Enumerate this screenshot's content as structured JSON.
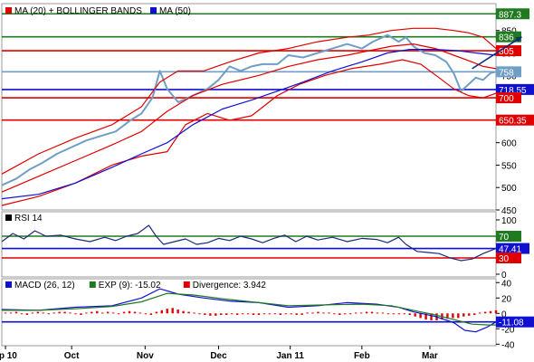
{
  "chart_data": [
    {
      "type": "line",
      "panel": "price",
      "legend": [
        {
          "label": "MA (20) + BOLLINGER BANDS",
          "color": "#e00000"
        },
        {
          "label": "MA (50)",
          "color": "#1010d0"
        }
      ],
      "ylim": [
        450,
        910
      ],
      "y_ticks": [
        450,
        500,
        550,
        600,
        650,
        700,
        750,
        800,
        850
      ],
      "x_labels": [
        "ep 10",
        "Oct",
        "Nov",
        "Dec",
        "Jan 11",
        "Feb",
        "Mar"
      ],
      "x_label_idx": [
        2,
        38,
        78,
        118,
        157,
        196,
        233
      ],
      "n_points": 270,
      "levels": [
        {
          "value": 887.3,
          "label": "887.3",
          "color": "#207a20"
        },
        {
          "value": 836,
          "label": "836",
          "color": "#207a20"
        },
        {
          "value": 805,
          "label": "805",
          "color": "#e00000"
        },
        {
          "value": 758,
          "label": "758",
          "color": "#6f9ec6"
        },
        {
          "value": 718.55,
          "label": "718.55",
          "color": "#1010d0"
        },
        {
          "value": 700,
          "label": "700",
          "color": "#e00000"
        },
        {
          "value": 650.35,
          "label": "650.35",
          "color": "#e00000"
        }
      ],
      "series": [
        {
          "key": "price",
          "color": "#6f9ec6",
          "points": [
            [
              0,
              505
            ],
            [
              8,
              520
            ],
            [
              15,
              540
            ],
            [
              22,
              555
            ],
            [
              30,
              575
            ],
            [
              38,
              590
            ],
            [
              46,
              605
            ],
            [
              54,
              615
            ],
            [
              62,
              625
            ],
            [
              70,
              650
            ],
            [
              76,
              665
            ],
            [
              82,
              700
            ],
            [
              86,
              760
            ],
            [
              90,
              720
            ],
            [
              96,
              690
            ],
            [
              104,
              705
            ],
            [
              112,
              720
            ],
            [
              118,
              740
            ],
            [
              124,
              770
            ],
            [
              130,
              760
            ],
            [
              136,
              770
            ],
            [
              142,
              775
            ],
            [
              150,
              775
            ],
            [
              156,
              795
            ],
            [
              164,
              790
            ],
            [
              172,
              800
            ],
            [
              180,
              810
            ],
            [
              188,
              820
            ],
            [
              196,
              810
            ],
            [
              202,
              825
            ],
            [
              210,
              840
            ],
            [
              216,
              825
            ],
            [
              220,
              835
            ],
            [
              224,
              815
            ],
            [
              230,
              800
            ],
            [
              236,
              795
            ],
            [
              242,
              780
            ],
            [
              246,
              755
            ],
            [
              250,
              715
            ],
            [
              254,
              730
            ],
            [
              258,
              745
            ],
            [
              262,
              740
            ],
            [
              266,
              755
            ],
            [
              269,
              758
            ]
          ]
        },
        {
          "key": "bb_upper",
          "color": "#e00000",
          "points": [
            [
              0,
              530
            ],
            [
              20,
              575
            ],
            [
              40,
              610
            ],
            [
              60,
              640
            ],
            [
              76,
              680
            ],
            [
              86,
              735
            ],
            [
              96,
              760
            ],
            [
              110,
              760
            ],
            [
              124,
              780
            ],
            [
              140,
              800
            ],
            [
              156,
              810
            ],
            [
              172,
              825
            ],
            [
              188,
              835
            ],
            [
              200,
              840
            ],
            [
              212,
              850
            ],
            [
              224,
              855
            ],
            [
              236,
              855
            ],
            [
              246,
              850
            ],
            [
              254,
              845
            ],
            [
              262,
              835
            ],
            [
              269,
              810
            ]
          ]
        },
        {
          "key": "bb_mid",
          "color": "#e00000",
          "points": [
            [
              0,
              490
            ],
            [
              20,
              525
            ],
            [
              40,
              560
            ],
            [
              60,
              595
            ],
            [
              76,
              625
            ],
            [
              90,
              670
            ],
            [
              104,
              705
            ],
            [
              120,
              730
            ],
            [
              140,
              750
            ],
            [
              156,
              770
            ],
            [
              172,
              785
            ],
            [
              188,
              795
            ],
            [
              200,
              805
            ],
            [
              212,
              815
            ],
            [
              224,
              820
            ],
            [
              236,
              810
            ],
            [
              246,
              795
            ],
            [
              256,
              780
            ],
            [
              262,
              770
            ],
            [
              269,
              765
            ]
          ]
        },
        {
          "key": "bb_lower",
          "color": "#e00000",
          "points": [
            [
              0,
              460
            ],
            [
              20,
              480
            ],
            [
              40,
              510
            ],
            [
              60,
              550
            ],
            [
              76,
              570
            ],
            [
              90,
              580
            ],
            [
              100,
              640
            ],
            [
              112,
              665
            ],
            [
              124,
              650
            ],
            [
              136,
              660
            ],
            [
              150,
              705
            ],
            [
              162,
              730
            ],
            [
              176,
              750
            ],
            [
              190,
              765
            ],
            [
              206,
              775
            ],
            [
              218,
              785
            ],
            [
              228,
              775
            ],
            [
              238,
              745
            ],
            [
              246,
              720
            ],
            [
              254,
              705
            ],
            [
              262,
              700
            ],
            [
              269,
              710
            ]
          ]
        },
        {
          "key": "ma50",
          "color": "#1010d0",
          "points": [
            [
              0,
              475
            ],
            [
              20,
              485
            ],
            [
              40,
              510
            ],
            [
              60,
              545
            ],
            [
              76,
              575
            ],
            [
              90,
              600
            ],
            [
              104,
              640
            ],
            [
              120,
              675
            ],
            [
              136,
              695
            ],
            [
              150,
              715
            ],
            [
              164,
              735
            ],
            [
              180,
              760
            ],
            [
              196,
              780
            ],
            [
              210,
              800
            ],
            [
              222,
              808
            ],
            [
              236,
              808
            ],
            [
              248,
              805
            ],
            [
              258,
              800
            ],
            [
              269,
              795
            ]
          ]
        }
      ],
      "projection": {
        "from": [
          256,
          765
        ],
        "to": [
          283,
          836
        ],
        "color": "#102a80"
      }
    },
    {
      "type": "line",
      "panel": "rsi",
      "legend": [
        {
          "label": "RSI 14",
          "color": "#000000"
        }
      ],
      "ylim": [
        -5,
        115
      ],
      "y_ticks": [
        100,
        50,
        0
      ],
      "levels": [
        {
          "value": 70,
          "label": "70",
          "color": "#207a20"
        },
        {
          "value": 47.41,
          "label": "47.41",
          "color": "#1010d0"
        },
        {
          "value": 30,
          "label": "30",
          "color": "#e00000"
        }
      ],
      "series": [
        {
          "key": "rsi",
          "color": "#1a2a7a",
          "points": [
            [
              0,
              60
            ],
            [
              6,
              75
            ],
            [
              12,
              65
            ],
            [
              18,
              80
            ],
            [
              24,
              70
            ],
            [
              32,
              72
            ],
            [
              40,
              65
            ],
            [
              48,
              60
            ],
            [
              56,
              68
            ],
            [
              62,
              62
            ],
            [
              68,
              70
            ],
            [
              74,
              75
            ],
            [
              80,
              90
            ],
            [
              84,
              70
            ],
            [
              88,
              55
            ],
            [
              94,
              60
            ],
            [
              100,
              65
            ],
            [
              106,
              55
            ],
            [
              112,
              58
            ],
            [
              118,
              66
            ],
            [
              124,
              62
            ],
            [
              130,
              70
            ],
            [
              136,
              65
            ],
            [
              142,
              58
            ],
            [
              148,
              66
            ],
            [
              154,
              72
            ],
            [
              160,
              60
            ],
            [
              166,
              70
            ],
            [
              172,
              63
            ],
            [
              180,
              68
            ],
            [
              188,
              60
            ],
            [
              196,
              66
            ],
            [
              204,
              64
            ],
            [
              210,
              58
            ],
            [
              216,
              68
            ],
            [
              220,
              55
            ],
            [
              226,
              42
            ],
            [
              232,
              40
            ],
            [
              238,
              38
            ],
            [
              244,
              30
            ],
            [
              250,
              25
            ],
            [
              256,
              28
            ],
            [
              262,
              38
            ],
            [
              269,
              47.41
            ]
          ]
        }
      ]
    },
    {
      "type": "bar",
      "panel": "macd",
      "legend": [
        {
          "label": "MACD (26, 12)",
          "color": "#1010d0"
        },
        {
          "label": "EXP (9): -15.02",
          "color": "#207a20"
        },
        {
          "label": "Divergence: 3.942",
          "color": "#e00000"
        }
      ],
      "ylim": [
        -42,
        45
      ],
      "y_ticks": [
        40,
        20,
        0,
        -20,
        -40
      ],
      "levels": [
        {
          "value": -11.08,
          "label": "-11.08",
          "color": "#1010d0"
        }
      ],
      "series": [
        {
          "key": "macd",
          "type": "line",
          "color": "#1010d0",
          "points": [
            [
              0,
              5
            ],
            [
              20,
              4
            ],
            [
              40,
              8
            ],
            [
              60,
              10
            ],
            [
              76,
              20
            ],
            [
              86,
              32
            ],
            [
              96,
              25
            ],
            [
              110,
              20
            ],
            [
              124,
              16
            ],
            [
              140,
              14
            ],
            [
              156,
              8
            ],
            [
              172,
              10
            ],
            [
              188,
              14
            ],
            [
              204,
              12
            ],
            [
              216,
              8
            ],
            [
              224,
              2
            ],
            [
              236,
              -4
            ],
            [
              246,
              -12
            ],
            [
              252,
              -22
            ],
            [
              258,
              -24
            ],
            [
              264,
              -18
            ],
            [
              269,
              -11.08
            ]
          ]
        },
        {
          "key": "signal",
          "type": "line",
          "color": "#207a20",
          "points": [
            [
              0,
              4
            ],
            [
              20,
              4
            ],
            [
              40,
              6
            ],
            [
              60,
              9
            ],
            [
              76,
              15
            ],
            [
              90,
              26
            ],
            [
              104,
              24
            ],
            [
              120,
              19
            ],
            [
              136,
              15
            ],
            [
              156,
              10
            ],
            [
              176,
              11
            ],
            [
              196,
              12
            ],
            [
              212,
              10
            ],
            [
              224,
              4
            ],
            [
              236,
              -2
            ],
            [
              246,
              -8
            ],
            [
              256,
              -14
            ],
            [
              264,
              -15
            ],
            [
              269,
              -15.02
            ]
          ]
        },
        {
          "key": "divergence",
          "type": "bar",
          "color": "#e00000",
          "values": [
            1,
            1,
            2,
            -1,
            -2,
            1,
            2,
            1,
            -1,
            1,
            2,
            2,
            1,
            -1,
            -2,
            1,
            2,
            3,
            1,
            2,
            1,
            -1,
            2,
            3,
            2,
            1,
            -1,
            -2,
            2,
            4,
            6,
            7,
            5,
            3,
            2,
            1,
            -1,
            -2,
            -3,
            -3,
            -2,
            -2,
            -1,
            -2,
            -1,
            -1,
            -2,
            -2,
            -1,
            -1,
            -1,
            -2,
            -1,
            -1,
            -2,
            -2,
            1,
            1,
            2,
            1,
            1,
            -1,
            -2,
            -1,
            -1,
            1,
            1,
            2,
            2,
            1,
            1,
            -1,
            -1,
            -1,
            -1,
            -2,
            -4,
            -6,
            -8,
            -9,
            -9,
            -8,
            -7,
            -6,
            -6,
            -4,
            -3,
            -2,
            1,
            2,
            3,
            3.942
          ]
        }
      ]
    }
  ]
}
